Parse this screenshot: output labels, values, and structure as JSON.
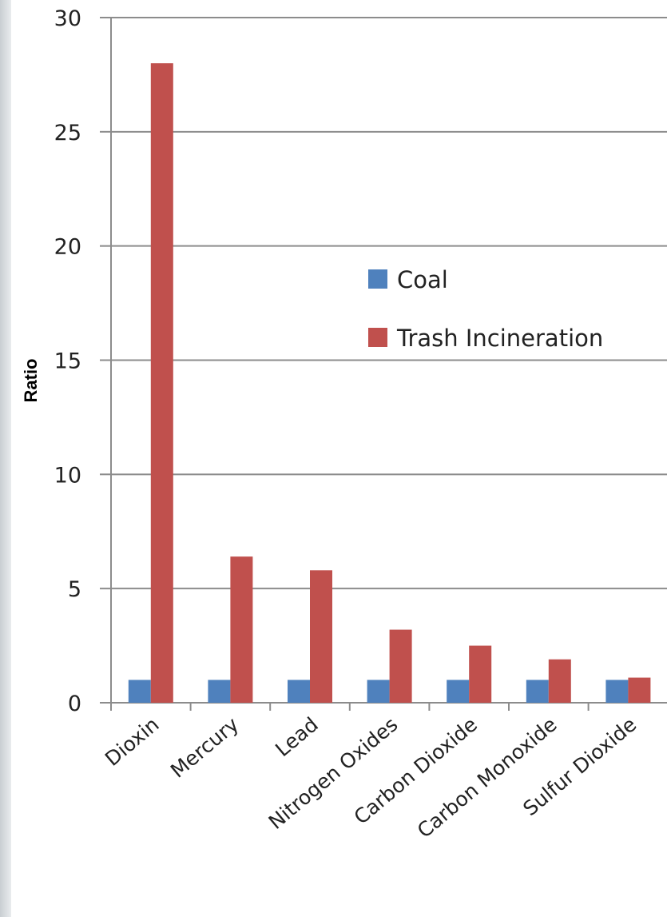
{
  "chart_data": {
    "type": "bar",
    "title": "",
    "xlabel": "",
    "ylabel": "Ratio",
    "ylim": [
      0,
      30
    ],
    "yticks": [
      "0",
      "5",
      "10",
      "15",
      "20",
      "25",
      "30"
    ],
    "grid": true,
    "legend_position": "center-right",
    "categories": [
      "Dioxin",
      "Mercury",
      "Lead",
      "Nitrogen Oxides",
      "Carbon Dioxide",
      "Carbon Monoxide",
      "Sulfur Dioxide"
    ],
    "series": [
      {
        "name": "Coal",
        "color": "#4f81bd",
        "values": [
          1,
          1,
          1,
          1,
          1,
          1,
          1
        ]
      },
      {
        "name": "Trash Incineration",
        "color": "#c0504d",
        "values": [
          28,
          6.4,
          5.8,
          3.2,
          2.5,
          1.9,
          1.1
        ]
      }
    ]
  }
}
